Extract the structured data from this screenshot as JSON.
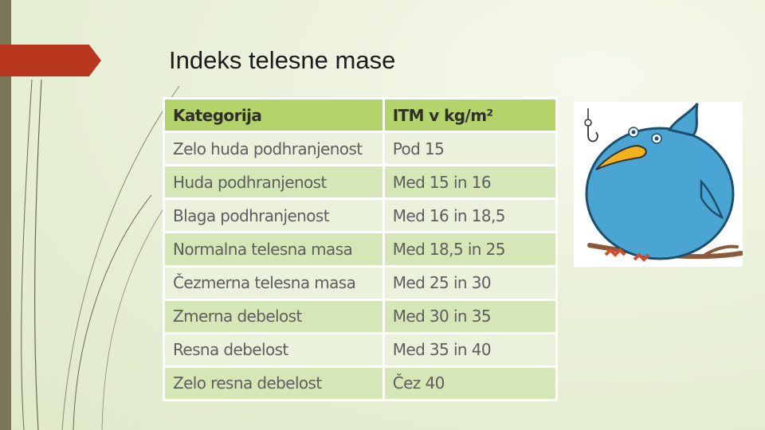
{
  "slide": {
    "title": "Indeks telesne mase",
    "accent_color": "#b9371f",
    "bar_color": "#7b7658"
  },
  "table": {
    "headers": [
      "Kategorija",
      "ITM v kg/m²"
    ],
    "rows": [
      [
        "Zelo huda podhranjenost",
        "Pod 15"
      ],
      [
        "Huda podhranjenost",
        "Med 15 in 16"
      ],
      [
        "Blaga podhranjenost",
        "Med 16 in 18,5"
      ],
      [
        "Normalna telesna masa",
        "Med 18,5 in 25"
      ],
      [
        "Čezmerna telesna masa",
        "Med 25 in 30"
      ],
      [
        "Zmerna debelost",
        "Med 30 in 35"
      ],
      [
        "Resna debelost",
        "Med 35 in 40"
      ],
      [
        "Zelo resna debelost",
        "Čez 40"
      ]
    ],
    "header_color": "#b4d36a"
  },
  "illustration": {
    "subject": "bird-icon"
  }
}
